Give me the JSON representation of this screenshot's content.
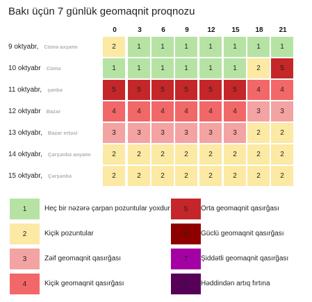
{
  "title": "Bakı üçün 7 günlük geomaqnit proqnozu",
  "hours": [
    "0",
    "3",
    "6",
    "9",
    "12",
    "15",
    "18",
    "21"
  ],
  "colors": {
    "1": "#b6e3a4",
    "2": "#fbe9a4",
    "3": "#f4a3a3",
    "4": "#f26868",
    "5": "#c4262a",
    "6": "#8e0000",
    "7": "#a400a4",
    "8": "#560058"
  },
  "days": [
    {
      "date": "9 oktyabr,",
      "weekday": "Cümə axşamı",
      "values": [
        2,
        1,
        1,
        1,
        1,
        1,
        1,
        1
      ]
    },
    {
      "date": "10 oktyabr",
      "weekday": "Cümə",
      "values": [
        1,
        1,
        1,
        1,
        1,
        1,
        2,
        5
      ]
    },
    {
      "date": "11 oktyabr,",
      "weekday": "şənbə",
      "values": [
        5,
        5,
        5,
        5,
        5,
        5,
        4,
        4
      ]
    },
    {
      "date": "12 oktyabr",
      "weekday": "Bazar",
      "values": [
        4,
        4,
        4,
        4,
        4,
        4,
        3,
        3
      ]
    },
    {
      "date": "13 oktyabr,",
      "weekday": "Bazar ertəsi",
      "values": [
        3,
        3,
        3,
        3,
        3,
        3,
        2,
        2
      ]
    },
    {
      "date": "14 oktyabr,",
      "weekday": "Çərşənbə axşamı",
      "values": [
        2,
        2,
        2,
        2,
        2,
        2,
        2,
        2
      ]
    },
    {
      "date": "15 oktyabr,",
      "weekday": "Çərşənbə",
      "values": [
        2,
        2,
        2,
        2,
        2,
        2,
        2,
        2
      ]
    }
  ],
  "legend": [
    {
      "level": "1",
      "label": "Heç bir nəzərə çarpan pozuntular yoxdur"
    },
    {
      "level": "2",
      "label": "Kiçik pozuntular"
    },
    {
      "level": "3",
      "label": "Zəif geomaqnit qasırğası"
    },
    {
      "level": "4",
      "label": "Kiçik geomaqnit qasırğası"
    },
    {
      "level": "5",
      "label": "Orta geomaqnit qasırğası"
    },
    {
      "level": "6",
      "label": "Güclü geomaqnit qasırğası"
    },
    {
      "level": "7",
      "label": "Şiddətli geomaqnit qasırğası"
    },
    {
      "level": "8",
      "label": "Həddindən artıq fırtına"
    }
  ]
}
